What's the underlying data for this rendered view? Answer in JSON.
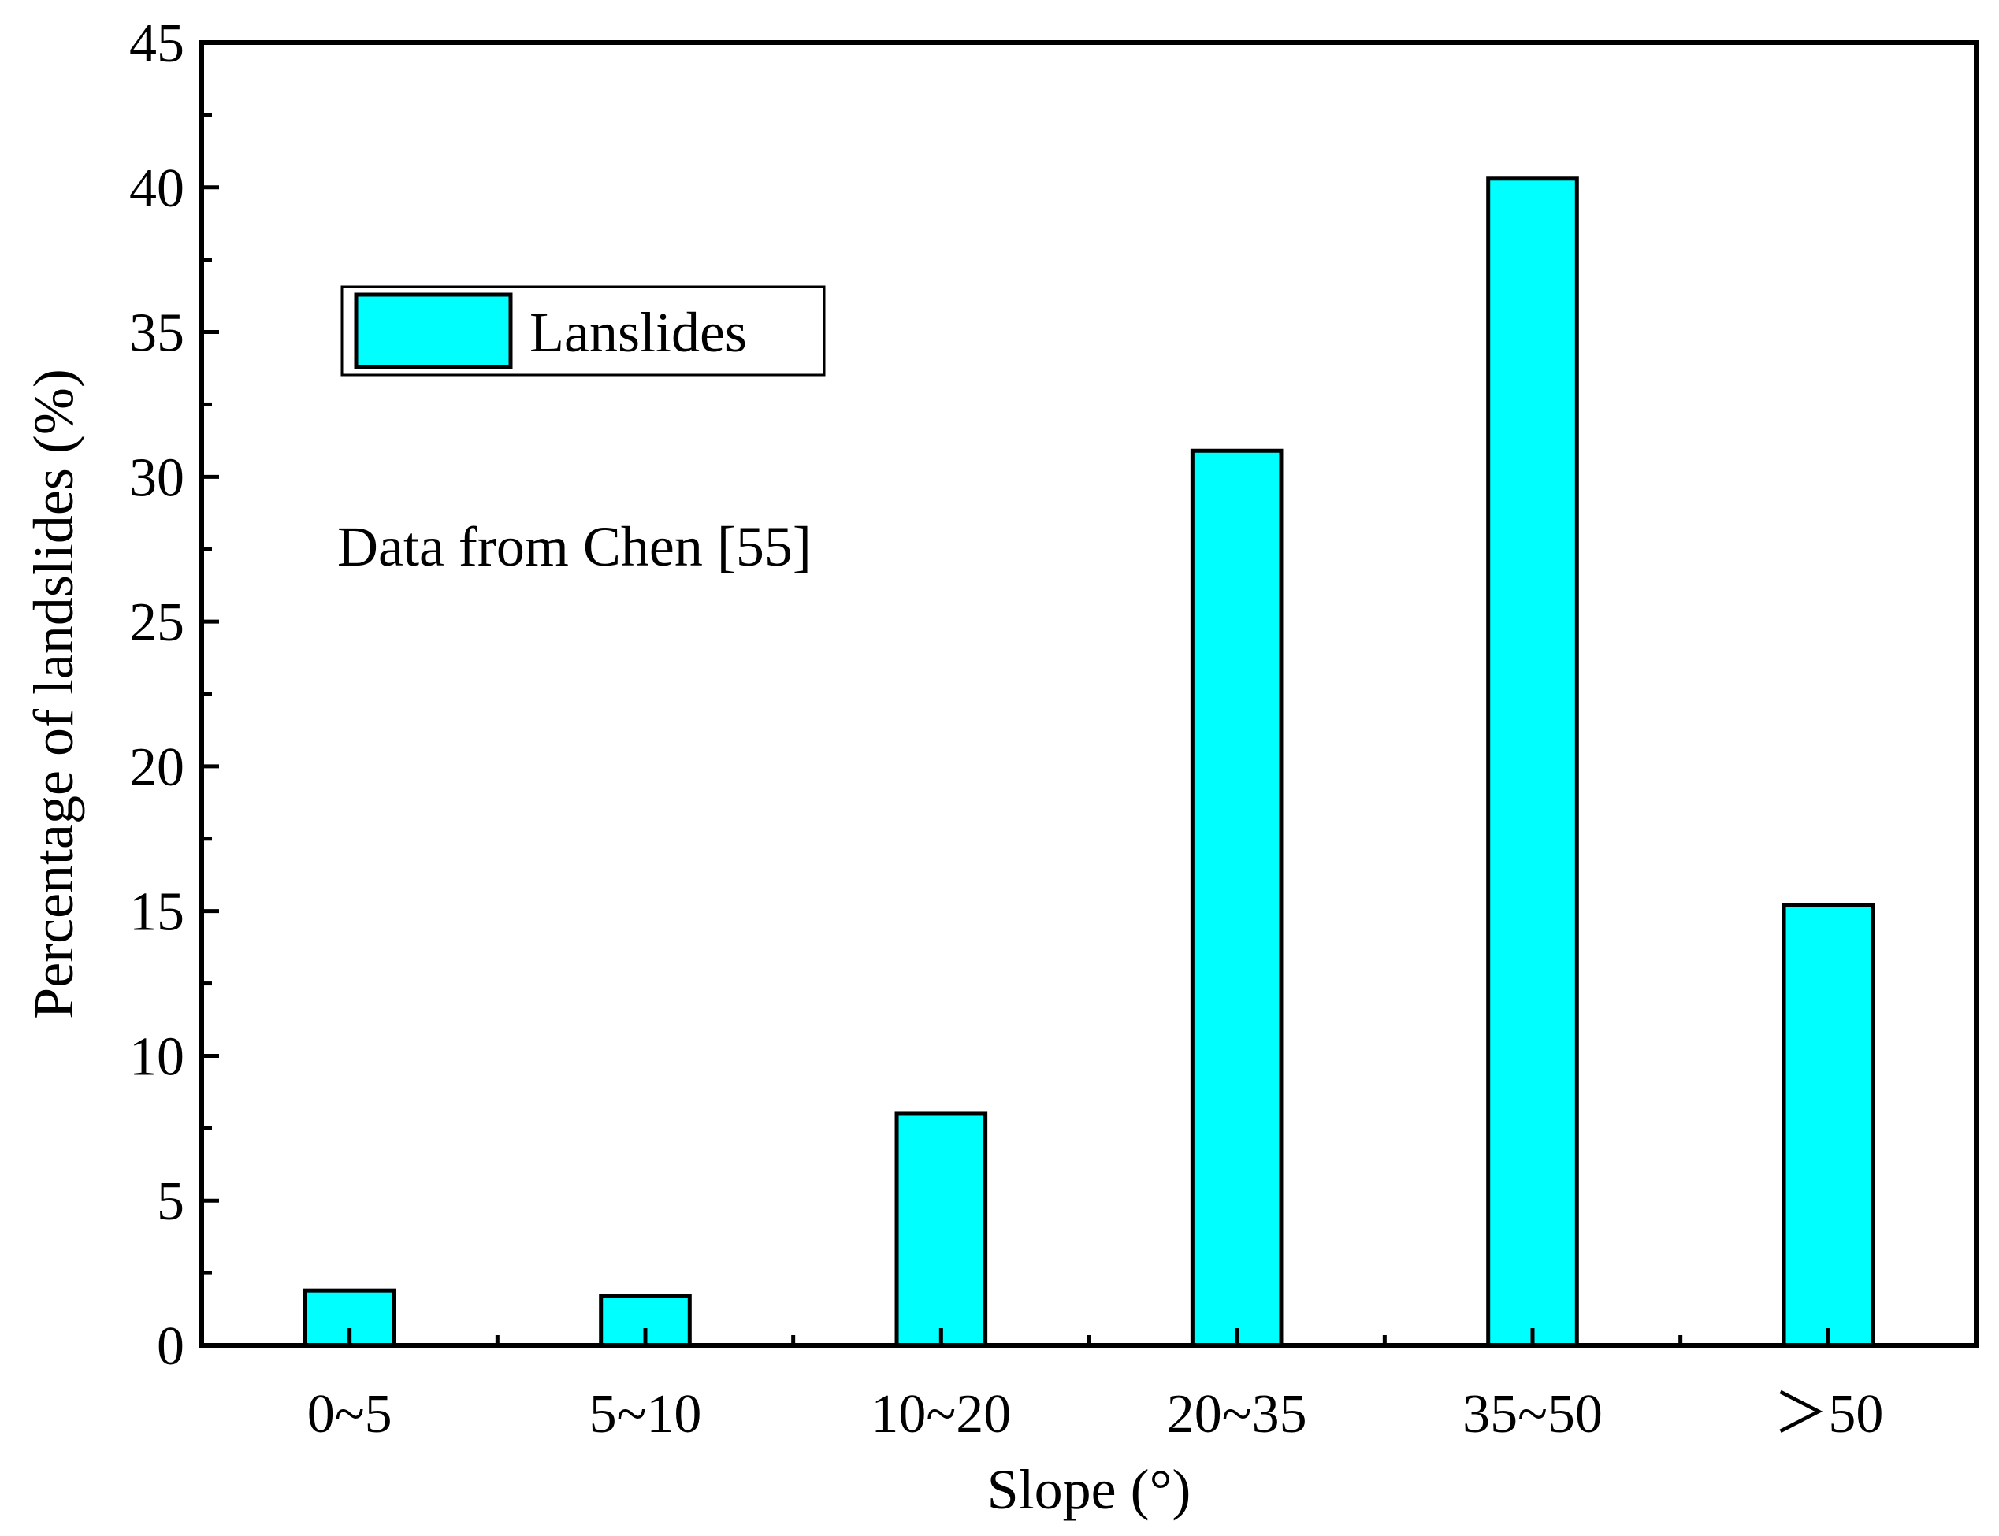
{
  "chart_data": {
    "type": "bar",
    "categories": [
      "0~5",
      "5~10",
      "10~20",
      "20~35",
      "35~50",
      "＞50"
    ],
    "series": [
      {
        "name": "Lanslides",
        "values": [
          1.9,
          1.7,
          8.0,
          30.9,
          40.3,
          15.2
        ]
      }
    ],
    "xlabel": "Slope (°)",
    "ylabel": "Percentage of landslides (%)",
    "ylim": [
      0,
      45
    ],
    "yticks": [
      0,
      5,
      10,
      15,
      20,
      25,
      30,
      35,
      40,
      45
    ],
    "annotation": "Data from Chen [55]",
    "legend_position": "top-left",
    "grid": false,
    "colors": {
      "bar_fill": "#00ffff",
      "bar_stroke": "#000000",
      "axis": "#000000"
    }
  }
}
